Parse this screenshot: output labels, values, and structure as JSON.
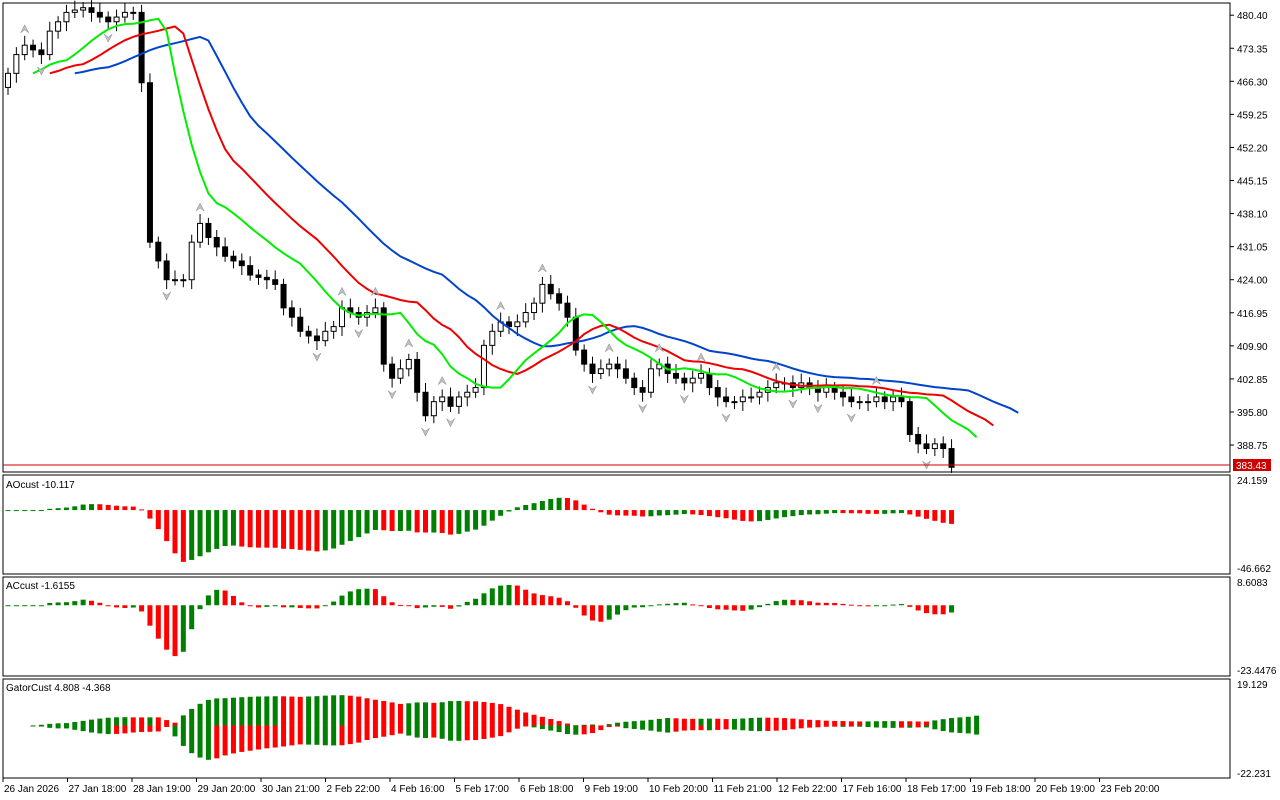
{
  "chart_data": [
    {
      "type": "candlestick",
      "pane": "price",
      "price_ticks": [
        "480.40",
        "473.35",
        "466.30",
        "459.25",
        "452.20",
        "445.15",
        "438.10",
        "431.05",
        "424.00",
        "416.95",
        "409.90",
        "402.85",
        "395.80",
        "388.75"
      ],
      "current_price_label": "383.43",
      "current_price": 383.43,
      "ylim": [
        383.0,
        483.0
      ],
      "x_labels": [
        "26 Jan 2026",
        "27 Jan 18:00",
        "28 Jan 19:00",
        "29 Jan 20:00",
        "30 Jan 21:00",
        "2 Feb 22:00",
        "4 Feb 16:00",
        "5 Feb 17:00",
        "6 Feb 18:00",
        "9 Feb 19:00",
        "10 Feb 20:00",
        "11 Feb 21:00",
        "12 Feb 22:00",
        "17 Feb 16:00",
        "18 Feb 17:00",
        "19 Feb 18:00",
        "20 Feb 19:00",
        "23 Feb 20:00"
      ],
      "closes": [
        468,
        472,
        474,
        473,
        472,
        477,
        479,
        481,
        481.5,
        482,
        481,
        480,
        479,
        480,
        481,
        481,
        466,
        432,
        428,
        424,
        424,
        424,
        432,
        436,
        433,
        431,
        429,
        428,
        427,
        425,
        424.5,
        424,
        423,
        418,
        416,
        413,
        412,
        411,
        413,
        414,
        418,
        417,
        416,
        417,
        418,
        406,
        403,
        405,
        407,
        400,
        395,
        398,
        399,
        397,
        399,
        400,
        401,
        410,
        413,
        415,
        414,
        415,
        417,
        419,
        423,
        421,
        419,
        416,
        409,
        406,
        404,
        405,
        406,
        405,
        403,
        401,
        400,
        405,
        406,
        404,
        403,
        402,
        403,
        404,
        401,
        399,
        398,
        398,
        399,
        399,
        400,
        401,
        402,
        402,
        401,
        402,
        401,
        400,
        401,
        400,
        399,
        398,
        398,
        398,
        399,
        398,
        399,
        398,
        391,
        389,
        388,
        389,
        388,
        384
      ],
      "alligator_jaw_color": "#0044cc",
      "alligator_teeth_color": "#ee0000",
      "alligator_lips_color": "#00ee00"
    },
    {
      "type": "histogram",
      "pane": "AOcust",
      "label": "AOcust -10.117",
      "ylim": [
        -46.662,
        24.159
      ],
      "tick_top": "24.159",
      "tick_bottom": "-46.662"
    },
    {
      "type": "histogram",
      "pane": "ACcust",
      "label": "ACcust -1.6155",
      "ylim": [
        -23.4476,
        8.6083
      ],
      "tick_top": "8.6083",
      "tick_bottom": "-23.4476"
    },
    {
      "type": "histogram",
      "pane": "GatorCust",
      "label": "GatorCust 4.808 -4.368",
      "ylim": [
        -22.231,
        19.129
      ],
      "tick_top": "19.129",
      "tick_bottom": "-22.231"
    }
  ],
  "colors": {
    "up": "#008000",
    "down": "#ff0000",
    "candle_border": "#000000",
    "fractal": "#c0c0c0",
    "price_tag_bg": "#cc0000"
  }
}
